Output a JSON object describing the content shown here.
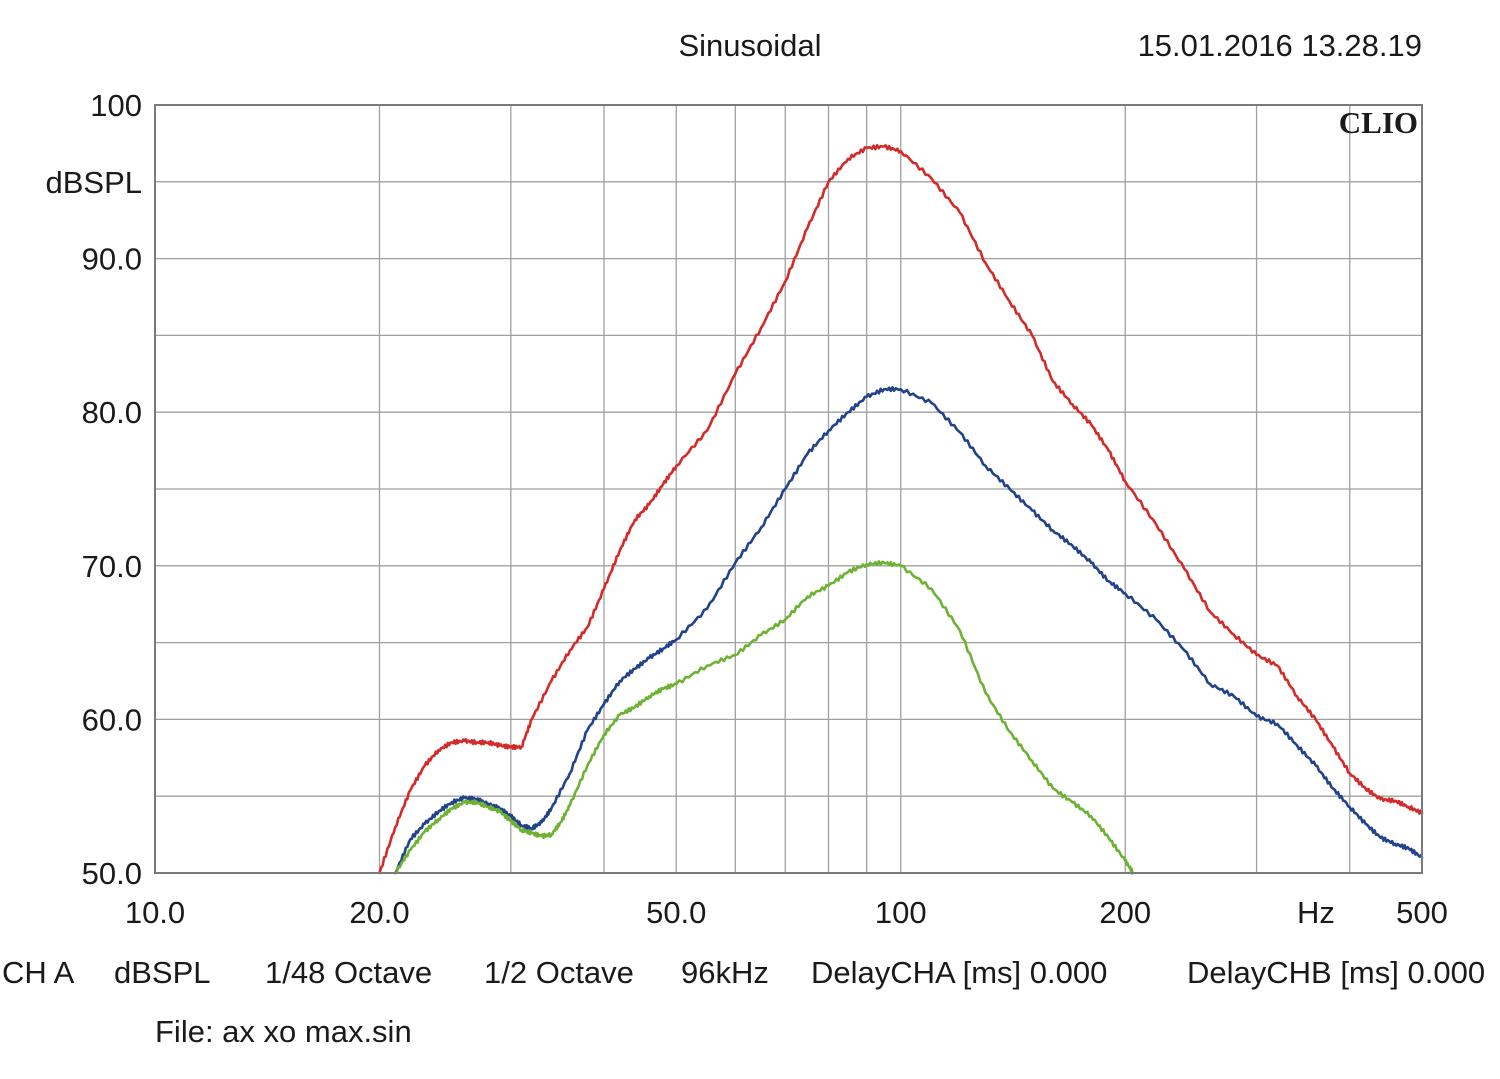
{
  "header": {
    "mode": "Sinusoidal",
    "timestamp": "15.01.2016 13.28.19",
    "brand": "CLIO"
  },
  "footer": {
    "channel": "CH A",
    "unit": "dBSPL",
    "resolution": "1/48 Octave",
    "smoothing": "1/2 Octave",
    "sample_rate": "96kHz",
    "delay_a": "DelayCHA [ms] 0.000",
    "delay_b": "DelayCHB [ms] 0.000",
    "file": "File: ax xo max.sin"
  },
  "chart_data": {
    "type": "line",
    "x_scale": "log",
    "xlim": [
      10,
      500
    ],
    "ylim": [
      50,
      100
    ],
    "grid": true,
    "ylabel": "dBSPL",
    "xlabel": "Hz",
    "x_tick_labels": [
      {
        "value": 10,
        "label": "10.0"
      },
      {
        "value": 20,
        "label": "20.0"
      },
      {
        "value": 50,
        "label": "50.0"
      },
      {
        "value": 100,
        "label": "100"
      },
      {
        "value": 200,
        "label": "200"
      },
      {
        "value": 500,
        "label": "500"
      }
    ],
    "y_tick_labels": [
      {
        "value": 100,
        "label": "100"
      },
      {
        "value": 90,
        "label": "90.0"
      },
      {
        "value": 80,
        "label": "80.0"
      },
      {
        "value": 70,
        "label": "70.0"
      },
      {
        "value": 60,
        "label": "60.0"
      },
      {
        "value": 50,
        "label": "50.0"
      }
    ],
    "series": [
      {
        "color": "#d42a2a",
        "points": [
          [
            20,
            50
          ],
          [
            21,
            53
          ],
          [
            22,
            55.4
          ],
          [
            23,
            57
          ],
          [
            24,
            58
          ],
          [
            25,
            58.5
          ],
          [
            26,
            58.6
          ],
          [
            27,
            58.5
          ],
          [
            28,
            58.5
          ],
          [
            29,
            58.3
          ],
          [
            30,
            58.2
          ],
          [
            31,
            58.2
          ],
          [
            32,
            60
          ],
          [
            34,
            62.5
          ],
          [
            36,
            64.5
          ],
          [
            38,
            66
          ],
          [
            40,
            68.5
          ],
          [
            42,
            71
          ],
          [
            44,
            73
          ],
          [
            46,
            74
          ],
          [
            48,
            75.3
          ],
          [
            50,
            76.5
          ],
          [
            55,
            78.8
          ],
          [
            60,
            82.5
          ],
          [
            65,
            85.5
          ],
          [
            70,
            88.5
          ],
          [
            75,
            92
          ],
          [
            80,
            95
          ],
          [
            85,
            96.5
          ],
          [
            90,
            97.2
          ],
          [
            95,
            97.3
          ],
          [
            100,
            97
          ],
          [
            110,
            95.2
          ],
          [
            120,
            93
          ],
          [
            130,
            89.7
          ],
          [
            140,
            87.2
          ],
          [
            150,
            85
          ],
          [
            160,
            82
          ],
          [
            170,
            80.5
          ],
          [
            180,
            79.2
          ],
          [
            190,
            77.5
          ],
          [
            200,
            75.5
          ],
          [
            220,
            72.7
          ],
          [
            240,
            69.8
          ],
          [
            260,
            67
          ],
          [
            280,
            65.5
          ],
          [
            300,
            64.2
          ],
          [
            320,
            63.5
          ],
          [
            340,
            61.5
          ],
          [
            360,
            60
          ],
          [
            380,
            58.2
          ],
          [
            400,
            56.5
          ],
          [
            420,
            55.5
          ],
          [
            440,
            54.8
          ],
          [
            460,
            54.7
          ],
          [
            480,
            54.3
          ],
          [
            500,
            53.9
          ]
        ]
      },
      {
        "color": "#22428a",
        "points": [
          [
            21,
            50
          ],
          [
            22,
            52.2
          ],
          [
            23,
            53.2
          ],
          [
            24,
            54
          ],
          [
            25,
            54.6
          ],
          [
            26,
            54.9
          ],
          [
            27,
            54.8
          ],
          [
            28,
            54.5
          ],
          [
            29,
            54.2
          ],
          [
            30,
            53.7
          ],
          [
            31,
            53.1
          ],
          [
            32,
            52.9
          ],
          [
            33,
            53.3
          ],
          [
            34,
            54.2
          ],
          [
            36,
            56.5
          ],
          [
            38,
            59.3
          ],
          [
            40,
            61
          ],
          [
            42,
            62.5
          ],
          [
            44,
            63.3
          ],
          [
            46,
            64
          ],
          [
            48,
            64.6
          ],
          [
            50,
            65.2
          ],
          [
            55,
            67.2
          ],
          [
            60,
            70.2
          ],
          [
            65,
            72.5
          ],
          [
            70,
            75
          ],
          [
            75,
            77.3
          ],
          [
            80,
            78.8
          ],
          [
            85,
            80
          ],
          [
            90,
            81
          ],
          [
            95,
            81.5
          ],
          [
            100,
            81.5
          ],
          [
            110,
            80.6
          ],
          [
            120,
            78.7
          ],
          [
            130,
            76.5
          ],
          [
            140,
            75
          ],
          [
            150,
            73.6
          ],
          [
            160,
            72.3
          ],
          [
            170,
            71.3
          ],
          [
            180,
            70.2
          ],
          [
            190,
            69
          ],
          [
            200,
            68.2
          ],
          [
            220,
            66.5
          ],
          [
            240,
            64.5
          ],
          [
            260,
            62.3
          ],
          [
            280,
            61.5
          ],
          [
            300,
            60.2
          ],
          [
            320,
            59.7
          ],
          [
            340,
            58.3
          ],
          [
            360,
            57
          ],
          [
            380,
            55.5
          ],
          [
            400,
            54.3
          ],
          [
            420,
            53.2
          ],
          [
            440,
            52.3
          ],
          [
            460,
            51.9
          ],
          [
            480,
            51.6
          ],
          [
            500,
            51
          ]
        ]
      },
      {
        "color": "#6db233",
        "points": [
          [
            21,
            50
          ],
          [
            22,
            51.5
          ],
          [
            23,
            52.7
          ],
          [
            24,
            53.5
          ],
          [
            25,
            54.2
          ],
          [
            26,
            54.6
          ],
          [
            27,
            54.6
          ],
          [
            28,
            54.3
          ],
          [
            29,
            54
          ],
          [
            30,
            53.4
          ],
          [
            31,
            52.8
          ],
          [
            32,
            52.6
          ],
          [
            33,
            52.4
          ],
          [
            34,
            52.5
          ],
          [
            35,
            53.3
          ],
          [
            36,
            54.4
          ],
          [
            38,
            57
          ],
          [
            40,
            59
          ],
          [
            42,
            60.3
          ],
          [
            44,
            60.8
          ],
          [
            46,
            61.5
          ],
          [
            48,
            62
          ],
          [
            50,
            62.3
          ],
          [
            55,
            63.5
          ],
          [
            60,
            64.2
          ],
          [
            65,
            65.5
          ],
          [
            70,
            66.5
          ],
          [
            75,
            68
          ],
          [
            80,
            68.7
          ],
          [
            85,
            69.6
          ],
          [
            90,
            70.1
          ],
          [
            95,
            70.2
          ],
          [
            100,
            70
          ],
          [
            110,
            68.5
          ],
          [
            120,
            65.8
          ],
          [
            130,
            61.7
          ],
          [
            140,
            59.2
          ],
          [
            150,
            57.3
          ],
          [
            160,
            55.5
          ],
          [
            170,
            54.6
          ],
          [
            180,
            53.7
          ],
          [
            190,
            52.3
          ],
          [
            200,
            50.8
          ],
          [
            205,
            50
          ]
        ]
      }
    ]
  }
}
